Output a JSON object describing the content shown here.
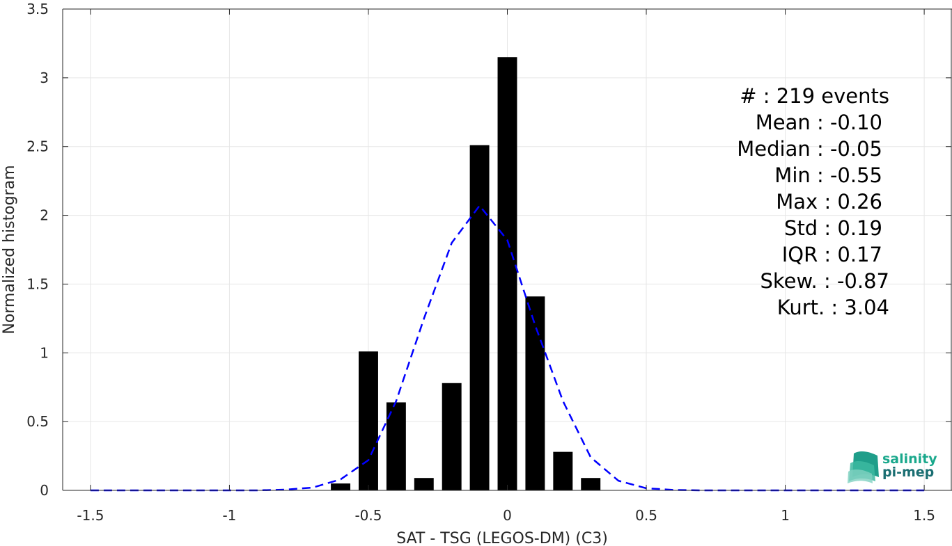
{
  "chart_data": {
    "type": "bar",
    "xlabel": "SAT - TSG (LEGOS-DM) (C3)",
    "ylabel": "Normalized histogram",
    "xlim": [
      -1.6,
      1.6
    ],
    "ylim": [
      0,
      3.5
    ],
    "x_ticks": [
      "-1.5",
      "-1",
      "-0.5",
      "0",
      "0.5",
      "1",
      "1.5"
    ],
    "x_tick_values": [
      -1.5,
      -1,
      -0.5,
      0,
      0.5,
      1,
      1.5
    ],
    "y_ticks": [
      "0",
      "0.5",
      "1",
      "1.5",
      "2",
      "2.5",
      "3",
      "3.5"
    ],
    "y_tick_values": [
      0,
      0.5,
      1,
      1.5,
      2,
      2.5,
      3,
      3.5
    ],
    "grid": true,
    "bar_width": 0.07,
    "bars": {
      "color": "#000000",
      "x": [
        -0.6,
        -0.5,
        -0.4,
        -0.3,
        -0.2,
        -0.1,
        0.0,
        0.1,
        0.2,
        0.3
      ],
      "values": [
        0.05,
        1.01,
        0.64,
        0.09,
        0.78,
        2.51,
        3.15,
        1.41,
        0.28,
        0.09
      ]
    },
    "fit_curve": {
      "style": "dashed",
      "color": "#0000ff",
      "x": [
        -1.5,
        -1.4,
        -1.3,
        -1.2,
        -1.1,
        -1.0,
        -0.9,
        -0.8,
        -0.7,
        -0.6,
        -0.5,
        -0.4,
        -0.3,
        -0.2,
        -0.1,
        0.0,
        0.1,
        0.2,
        0.3,
        0.4,
        0.5,
        0.6,
        0.7,
        0.8,
        0.9,
        1.0,
        1.1,
        1.2,
        1.3,
        1.4,
        1.5
      ],
      "y": [
        0,
        0,
        0,
        0,
        0,
        0,
        0,
        0.005,
        0.02,
        0.08,
        0.22,
        0.65,
        1.25,
        1.8,
        2.07,
        1.82,
        1.2,
        0.65,
        0.24,
        0.07,
        0.015,
        0.003,
        0,
        0,
        0,
        0,
        0,
        0,
        0,
        0,
        0
      ]
    },
    "annotations": {
      "events": "#  : 219 events",
      "lines": [
        "Mean : -0.10",
        "Median : -0.05",
        "Min : -0.55",
        "Max : 0.26",
        "Std : 0.19",
        "IQR : 0.17",
        "Skew. : -0.87",
        "Kurt. : 3.04"
      ]
    }
  },
  "logo": {
    "line1": "salinity",
    "line2": "pi-mep",
    "color_top": "#1aa88c",
    "color_bottom": "#1a6e72"
  }
}
